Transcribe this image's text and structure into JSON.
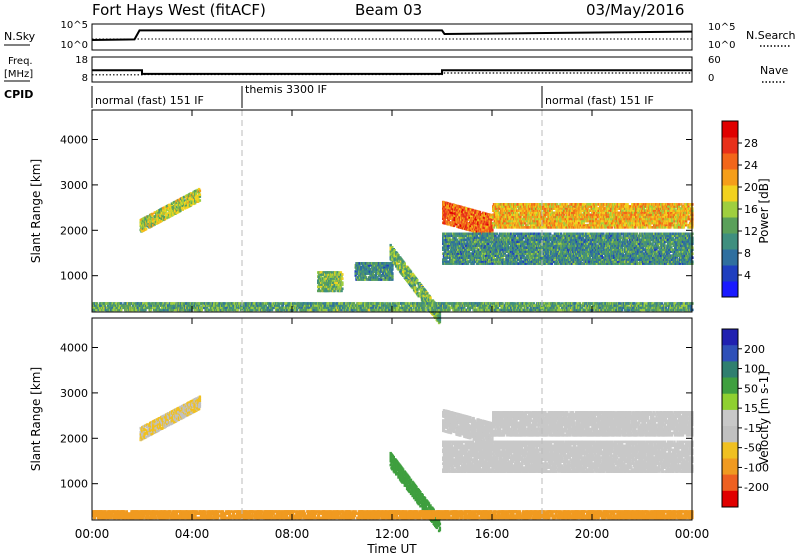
{
  "header": {
    "station": "Fort Hays West (fitACF)",
    "beam": "Beam 03",
    "date": "03/May/2016"
  },
  "noise_panel": {
    "left_label": "N.Sky",
    "right_label": "N.Search",
    "left_ticks": [
      "10^5",
      "10^0"
    ],
    "right_ticks": [
      "10^5",
      "10^0"
    ],
    "n_sky_level": [
      [
        0,
        1.0
      ],
      [
        1.7,
        1.1
      ],
      [
        1.9,
        2.6
      ],
      [
        14.0,
        2.6
      ],
      [
        14.1,
        2.0
      ],
      [
        24,
        2.4
      ]
    ],
    "n_search_level": [
      [
        0,
        1.4
      ],
      [
        24,
        1.4
      ]
    ]
  },
  "freq_panel": {
    "left_label_1": "Freq.",
    "left_label_2": "[MHz]",
    "right_label": "Nave",
    "left_ticks": [
      "18",
      "8"
    ],
    "right_ticks": [
      "60",
      "0"
    ],
    "freq_mhz": [
      [
        0,
        13.6
      ],
      [
        2.0,
        13.6
      ],
      [
        2.0,
        11.3
      ],
      [
        14.0,
        11.3
      ],
      [
        14.0,
        13.6
      ],
      [
        24,
        13.6
      ]
    ],
    "nave": [
      [
        0,
        14
      ],
      [
        2.0,
        14
      ],
      [
        2.0,
        15
      ],
      [
        14.0,
        15
      ],
      [
        14.0,
        20
      ],
      [
        24,
        20
      ]
    ]
  },
  "cpid": {
    "label": "CPID",
    "segments": [
      {
        "start": 0,
        "end": 6,
        "text": "normal (fast) 151 IF"
      },
      {
        "start": 6,
        "end": 18,
        "text": "themis 3300 IF"
      },
      {
        "start": 18,
        "end": 24,
        "text": "normal (fast) 151 IF"
      }
    ]
  },
  "x_axis": {
    "label": "Time UT",
    "ticks": [
      "00:00",
      "04:00",
      "08:00",
      "12:00",
      "16:00",
      "20:00",
      "00:00"
    ],
    "range_hours": [
      0,
      24
    ]
  },
  "colors": {
    "power": [
      "#1a1aff",
      "#1f3fbf",
      "#2f6f9f",
      "#3f8f7f",
      "#5aa05a",
      "#9fcf3f",
      "#f2d21f",
      "#f59e1a",
      "#f2661a",
      "#e8301a",
      "#e00000"
    ],
    "velocity": [
      "#2020b0",
      "#2f50b8",
      "#2f7f6f",
      "#3f9f3f",
      "#8fd030",
      "#c8c8c8",
      "#c0c0c0",
      "#f0c020",
      "#f09a20",
      "#ee6020",
      "#e00000"
    ]
  },
  "chart_data": [
    {
      "type": "heatmap",
      "name": "power",
      "ylabel": "Slant Range [km]",
      "ylim": [
        200,
        4650
      ],
      "yticks": [
        "1000",
        "2000",
        "3000",
        "4000"
      ],
      "xlim": [
        0,
        24
      ],
      "colorbar_label": "Power [dB]",
      "colorbar_ticks": [
        "4",
        "8",
        "12",
        "16",
        "20",
        "24",
        "28"
      ],
      "clim": [
        0,
        31
      ],
      "regions": [
        {
          "t0": 1.9,
          "t1": 4.3,
          "r_lo": 1950,
          "r_hi": 2250,
          "rise": 700,
          "value": 16
        },
        {
          "t0": 11.9,
          "t1": 13.9,
          "r_lo": 1350,
          "r_hi": 1700,
          "rise": -1450,
          "value": 13
        },
        {
          "t0": 14.0,
          "t1": 16.0,
          "r_lo": 2150,
          "r_hi": 2650,
          "rise": -300,
          "value": 24
        },
        {
          "t0": 16.0,
          "t1": 24.0,
          "r_lo": 2050,
          "r_hi": 2600,
          "rise": 0,
          "value": 20
        },
        {
          "t0": 14.0,
          "t1": 24.0,
          "r_lo": 1250,
          "r_hi": 1950,
          "rise": 0,
          "value": 10
        },
        {
          "t0": 9.0,
          "t1": 10.0,
          "r_lo": 650,
          "r_hi": 1100,
          "rise": 0,
          "value": 14
        },
        {
          "t0": 10.5,
          "t1": 12.0,
          "r_lo": 900,
          "r_hi": 1300,
          "rise": 0,
          "value": 10
        },
        {
          "t0": 0.0,
          "t1": 24.0,
          "r_lo": 230,
          "r_hi": 420,
          "rise": 0,
          "value": 12
        }
      ]
    },
    {
      "type": "heatmap",
      "name": "velocity",
      "ylabel": "Slant Range [km]",
      "ylim": [
        200,
        4650
      ],
      "yticks": [
        "1000",
        "2000",
        "3000",
        "4000"
      ],
      "xlim": [
        0,
        24
      ],
      "colorbar_label": "Velocity [m s-1]",
      "colorbar_ticks": [
        "200",
        "100",
        "50",
        "15",
        "-15",
        "-50",
        "-100",
        "-200"
      ],
      "regions": [
        {
          "t0": 1.9,
          "t1": 4.3,
          "r_lo": 1950,
          "r_hi": 2250,
          "rise": 700,
          "value": -15
        },
        {
          "t0": 11.9,
          "t1": 13.9,
          "r_lo": 1350,
          "r_hi": 1700,
          "rise": -1450,
          "value": 40
        },
        {
          "t0": 14.0,
          "t1": 16.0,
          "r_lo": 2150,
          "r_hi": 2650,
          "rise": -300,
          "value": 0
        },
        {
          "t0": 16.0,
          "t1": 24.0,
          "r_lo": 2050,
          "r_hi": 2600,
          "rise": 0,
          "value": 0
        },
        {
          "t0": 14.0,
          "t1": 24.0,
          "r_lo": 1250,
          "r_hi": 1950,
          "rise": 0,
          "value": 0
        },
        {
          "t0": 0.0,
          "t1": 24.0,
          "r_lo": 230,
          "r_hi": 420,
          "rise": 0,
          "value": -60
        }
      ]
    }
  ]
}
